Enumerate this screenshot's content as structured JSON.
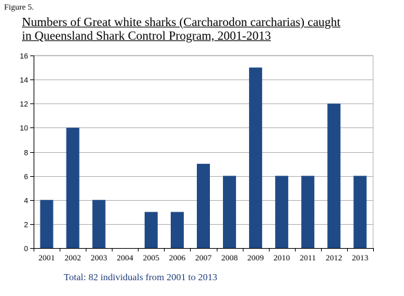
{
  "figure_label": "Figure 5.",
  "title_line1": "Numbers of Great white sharks (Carcharodon carcharias) caught",
  "title_line2": "in Queensland Shark Control Program, 2001-2013",
  "footer_note": "Total: 82 individuals from 2001 to 2013",
  "colors": {
    "bar": "#1f4a86",
    "grid": "#b3b3b3",
    "axis": "#000000"
  },
  "chart_data": {
    "type": "bar",
    "categories": [
      "2001",
      "2002",
      "2003",
      "2004",
      "2005",
      "2006",
      "2007",
      "2008",
      "2009",
      "2010",
      "2011",
      "2012",
      "2013"
    ],
    "values": [
      4,
      10,
      4,
      0,
      3,
      3,
      7,
      6,
      15,
      6,
      6,
      12,
      6
    ],
    "xlabel": "",
    "ylabel": "",
    "ylim": [
      0,
      16
    ],
    "yticks": [
      0,
      2,
      4,
      6,
      8,
      10,
      12,
      14,
      16
    ],
    "grid": true,
    "legend": "none"
  }
}
